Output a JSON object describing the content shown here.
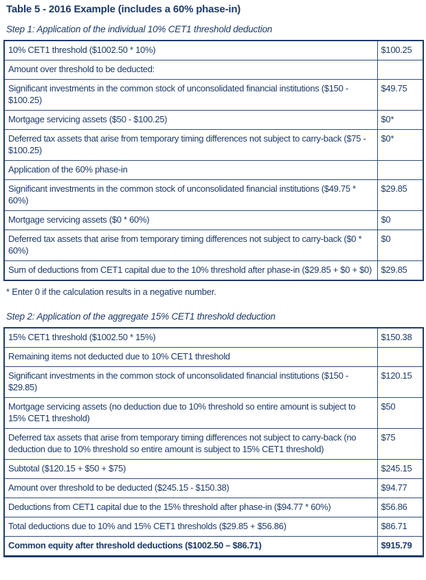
{
  "colors": {
    "ink": "#1c3a6a",
    "grid": "#2e4b7c",
    "background": "#ffffff"
  },
  "page": {
    "title": "Table 5 - 2016 Example (includes a 60% phase-in)",
    "footnote": "* Enter 0 if the calculation results in a negative number."
  },
  "step1": {
    "heading": "Step 1: Application of the individual 10% CET1 threshold deduction",
    "rows": [
      {
        "label": "10% CET1 threshold ($1002.50 * 10%)",
        "value": "$100.25"
      },
      {
        "label": "Amount over threshold to be deducted:",
        "value": ""
      },
      {
        "label": "Significant investments in the common stock of unconsolidated financial institutions ($150 - $100.25)",
        "value": "$49.75"
      },
      {
        "label": "Mortgage servicing assets ($50 - $100.25)",
        "value": "$0*"
      },
      {
        "label": "Deferred tax assets that arise from temporary timing differences not subject to carry-back ($75 - $100.25)",
        "value": "$0*"
      },
      {
        "label": "Application of the 60% phase-in",
        "value": ""
      },
      {
        "label": "Significant investments in the common stock of unconsolidated financial institutions ($49.75 * 60%)",
        "value": "$29.85"
      },
      {
        "label": "Mortgage servicing assets ($0 * 60%)",
        "value": "$0"
      },
      {
        "label": "Deferred tax assets that arise from temporary timing differences not subject to carry-back ($0 * 60%)",
        "value": "$0"
      },
      {
        "label": "Sum of deductions from CET1 capital due to the 10% threshold after phase-in ($29.85 + $0 + $0)",
        "value": "$29.85"
      }
    ]
  },
  "step2": {
    "heading": "Step 2: Application of the aggregate 15% CET1 threshold deduction",
    "rows": [
      {
        "label": "15% CET1 threshold ($1002.50 * 15%)",
        "value": "$150.38"
      },
      {
        "label": "Remaining items not deducted due to 10% CET1 threshold",
        "value": ""
      },
      {
        "label": "Significant investments in the common stock of unconsolidated financial institutions ($150 - $29.85)",
        "value": "$120.15"
      },
      {
        "label": "Mortgage servicing assets (no deduction due to 10% threshold so entire amount is subject to 15% CET1 threshold)",
        "value": "$50"
      },
      {
        "label": "Deferred tax assets that arise from temporary timing differences not subject to carry-back (no deduction due to 10% threshold so entire amount is subject to 15% CET1 threshold)",
        "value": "$75"
      },
      {
        "label": "Subtotal ($120.15 + $50 + $75)",
        "value": "$245.15"
      },
      {
        "label": "Amount over threshold to be deducted ($245.15 - $150.38)",
        "value": "$94.77"
      },
      {
        "label": "Deductions from CET1 capital due to the 15% threshold after phase-in ($94.77 * 60%)",
        "value": "$56.86"
      },
      {
        "label": "Total deductions due to 10% and 15% CET1 thresholds ($29.85 + $56.86)",
        "value": "$86.71"
      },
      {
        "label": "Common equity after threshold deductions ($1002.50 – $86.71)",
        "value": "$915.79",
        "emphasis": true
      }
    ]
  }
}
